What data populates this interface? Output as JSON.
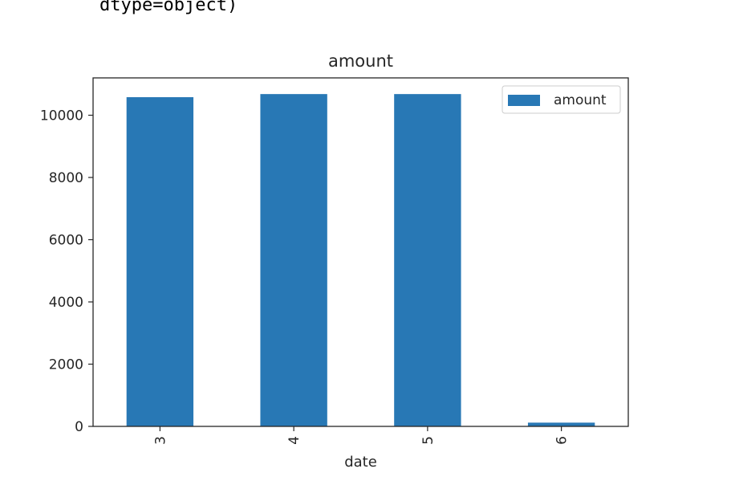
{
  "output": {
    "text": "dtype=object)"
  },
  "chart_data": {
    "type": "bar",
    "title": "amount",
    "xlabel": "date",
    "ylabel": "",
    "categories": [
      "3",
      "4",
      "5",
      "6"
    ],
    "series": [
      {
        "name": "amount",
        "values": [
          10580,
          10680,
          10680,
          120
        ],
        "color": "#2878b5"
      }
    ],
    "ylim": [
      0,
      11200
    ],
    "yticks": [
      0,
      2000,
      4000,
      6000,
      8000,
      10000
    ],
    "grid": false,
    "legend": "top-right",
    "xtick_rotation": 90
  }
}
